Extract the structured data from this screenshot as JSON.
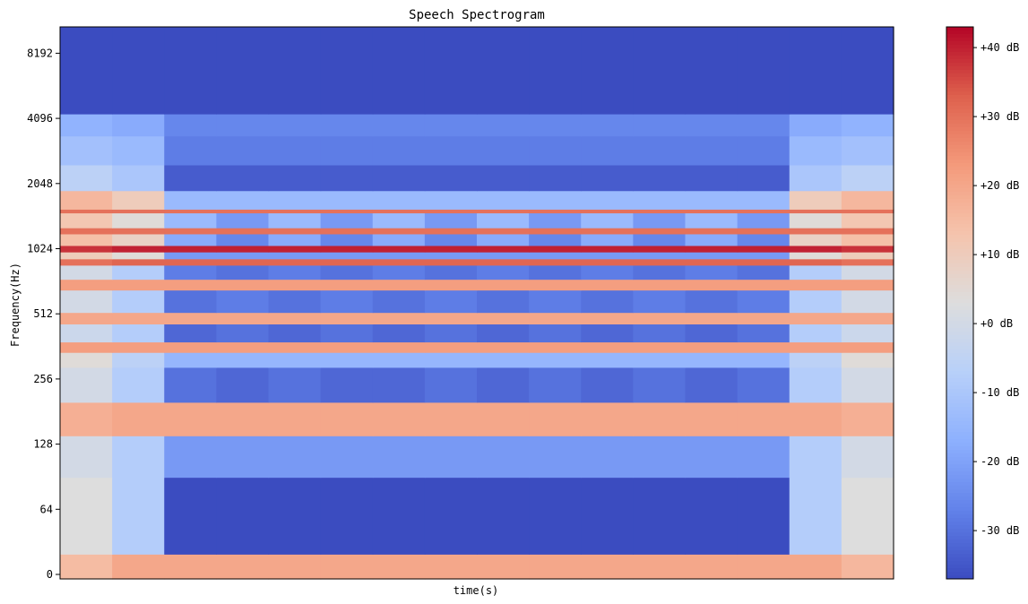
{
  "chart_data": {
    "type": "heatmap",
    "title": "Speech Spectrogram",
    "xlabel": "time(s)",
    "ylabel": "Frequency(Hz)",
    "y_scale": "symlog",
    "y_ticks": [
      "0",
      "64",
      "128",
      "256",
      "512",
      "1024",
      "2048",
      "4096",
      "8192"
    ],
    "x_ticks": [],
    "colormap": "coolwarm",
    "colorbar": {
      "range_db": [
        -37,
        43
      ],
      "ticks": [
        "-30 dB",
        "-20 dB",
        "-10 dB",
        "+0 dB",
        "+10 dB",
        "+20 dB",
        "+30 dB",
        "+40 dB"
      ]
    },
    "time_segments": 16,
    "frequency_bands_hz": [
      {
        "f_low": 0,
        "f_high": 20,
        "db": [
          15,
          20,
          20,
          20,
          20,
          20,
          20,
          20,
          20,
          20,
          20,
          20,
          20,
          20,
          20,
          16
        ]
      },
      {
        "f_low": 20,
        "f_high": 90,
        "db": [
          3,
          -8,
          -37,
          -37,
          -37,
          -37,
          -37,
          -37,
          -37,
          -37,
          -37,
          -37,
          -37,
          -37,
          -8,
          3
        ]
      },
      {
        "f_low": 90,
        "f_high": 140,
        "db": [
          0,
          -8,
          -22,
          -22,
          -22,
          -22,
          -22,
          -22,
          -22,
          -22,
          -22,
          -22,
          -22,
          -22,
          -8,
          0
        ]
      },
      {
        "f_low": 140,
        "f_high": 200,
        "db": [
          18,
          20,
          20,
          20,
          20,
          20,
          20,
          20,
          20,
          20,
          20,
          20,
          20,
          20,
          20,
          18
        ]
      },
      {
        "f_low": 200,
        "f_high": 290,
        "db": [
          0,
          -8,
          -30,
          -32,
          -30,
          -32,
          -32,
          -30,
          -32,
          -30,
          -32,
          -30,
          -32,
          -30,
          -8,
          0
        ]
      },
      {
        "f_low": 290,
        "f_high": 340,
        "db": [
          4,
          -6,
          -15,
          -15,
          -15,
          -15,
          -15,
          -15,
          -15,
          -15,
          -15,
          -15,
          -15,
          -15,
          -6,
          4
        ]
      },
      {
        "f_low": 340,
        "f_high": 380,
        "db": [
          22,
          22,
          22,
          22,
          22,
          22,
          22,
          22,
          22,
          22,
          22,
          22,
          22,
          22,
          22,
          22
        ]
      },
      {
        "f_low": 380,
        "f_high": 460,
        "db": [
          -2,
          -8,
          -32,
          -30,
          -32,
          -30,
          -32,
          -30,
          -32,
          -30,
          -32,
          -30,
          -32,
          -30,
          -8,
          -2
        ]
      },
      {
        "f_low": 460,
        "f_high": 520,
        "db": [
          20,
          20,
          20,
          20,
          20,
          20,
          20,
          20,
          20,
          20,
          20,
          20,
          20,
          20,
          20,
          20
        ]
      },
      {
        "f_low": 520,
        "f_high": 660,
        "db": [
          0,
          -8,
          -30,
          -28,
          -30,
          -28,
          -30,
          -28,
          -30,
          -28,
          -30,
          -28,
          -30,
          -28,
          -8,
          0
        ]
      },
      {
        "f_low": 660,
        "f_high": 740,
        "db": [
          22,
          22,
          22,
          22,
          22,
          22,
          22,
          22,
          22,
          22,
          22,
          22,
          22,
          22,
          22,
          22
        ]
      },
      {
        "f_low": 740,
        "f_high": 860,
        "db": [
          0,
          -8,
          -28,
          -30,
          -28,
          -30,
          -28,
          -30,
          -28,
          -30,
          -28,
          -30,
          -28,
          -30,
          -8,
          0
        ]
      },
      {
        "f_low": 860,
        "f_high": 920,
        "db": [
          30,
          32,
          32,
          32,
          32,
          32,
          32,
          32,
          32,
          32,
          32,
          32,
          32,
          32,
          32,
          30
        ]
      },
      {
        "f_low": 920,
        "f_high": 990,
        "db": [
          10,
          4,
          -22,
          -22,
          -22,
          -22,
          -22,
          -22,
          -22,
          -22,
          -22,
          -22,
          -22,
          -22,
          4,
          10
        ]
      },
      {
        "f_low": 990,
        "f_high": 1060,
        "db": [
          38,
          40,
          40,
          40,
          40,
          40,
          40,
          40,
          40,
          40,
          40,
          40,
          40,
          40,
          40,
          38
        ]
      },
      {
        "f_low": 1060,
        "f_high": 1200,
        "db": [
          14,
          8,
          -18,
          -26,
          -18,
          -26,
          -18,
          -26,
          -18,
          -26,
          -18,
          -26,
          -18,
          -26,
          8,
          14
        ]
      },
      {
        "f_low": 1200,
        "f_high": 1280,
        "db": [
          30,
          30,
          30,
          30,
          30,
          30,
          30,
          30,
          30,
          30,
          30,
          30,
          30,
          30,
          30,
          30
        ]
      },
      {
        "f_low": 1280,
        "f_high": 1500,
        "db": [
          12,
          4,
          -14,
          -22,
          -14,
          -22,
          -14,
          -22,
          -14,
          -22,
          -14,
          -22,
          -14,
          -22,
          4,
          12
        ]
      },
      {
        "f_low": 1500,
        "f_high": 1560,
        "db": [
          30,
          30,
          30,
          30,
          30,
          30,
          30,
          30,
          30,
          30,
          30,
          30,
          30,
          30,
          30,
          30
        ]
      },
      {
        "f_low": 1560,
        "f_high": 1900,
        "db": [
          16,
          10,
          -14,
          -14,
          -14,
          -14,
          -14,
          -14,
          -14,
          -14,
          -14,
          -14,
          -14,
          -14,
          10,
          16
        ]
      },
      {
        "f_low": 1900,
        "f_high": 2500,
        "db": [
          -6,
          -10,
          -34,
          -34,
          -34,
          -34,
          -34,
          -34,
          -34,
          -34,
          -34,
          -34,
          -34,
          -34,
          -10,
          -6
        ]
      },
      {
        "f_low": 2500,
        "f_high": 3400,
        "db": [
          -12,
          -14,
          -28,
          -28,
          -28,
          -28,
          -28,
          -28,
          -28,
          -28,
          -28,
          -28,
          -28,
          -28,
          -14,
          -12
        ]
      },
      {
        "f_low": 3400,
        "f_high": 4300,
        "db": [
          -16,
          -18,
          -26,
          -26,
          -26,
          -26,
          -26,
          -26,
          -26,
          -26,
          -26,
          -26,
          -26,
          -26,
          -18,
          -16
        ]
      },
      {
        "f_low": 4300,
        "f_high": 11025,
        "db": [
          -37,
          -37,
          -37,
          -37,
          -37,
          -37,
          -37,
          -37,
          -37,
          -37,
          -37,
          -37,
          -37,
          -37,
          -37,
          -37
        ]
      }
    ]
  }
}
